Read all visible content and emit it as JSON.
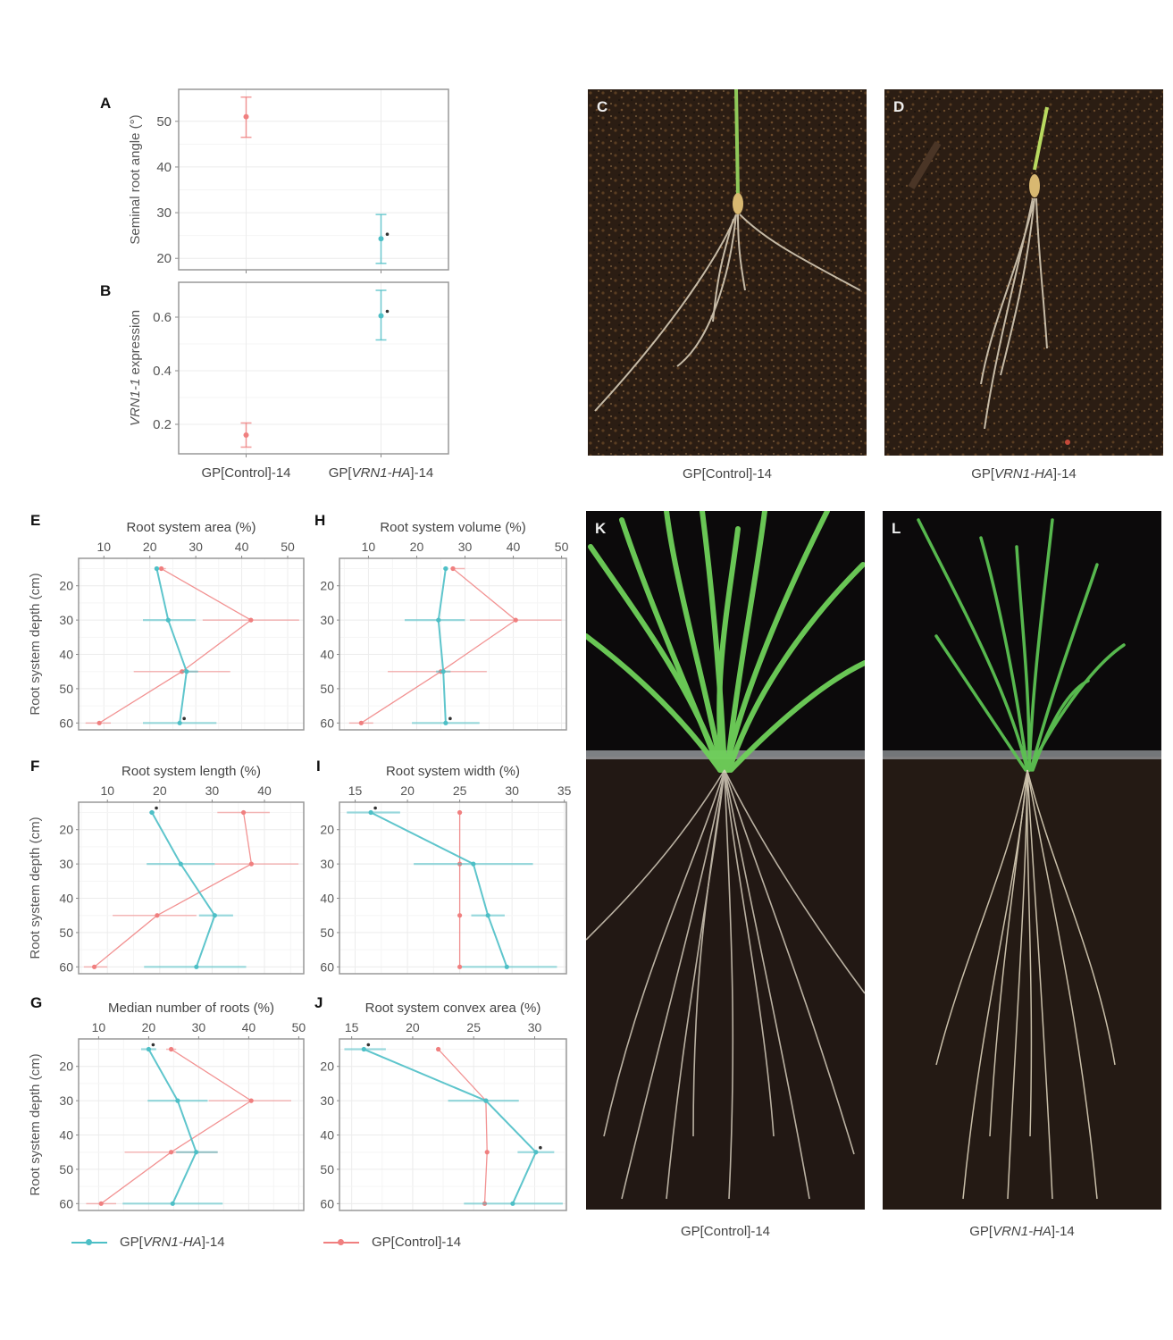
{
  "colors": {
    "vrn1": "#4dbfc6",
    "control": "#f07f7f",
    "significance": "#333333",
    "axis_frame": "#999999",
    "grid": "#ececec"
  },
  "legend": {
    "vrn1_label_prefix": "GP[",
    "vrn1_label_italic": "VRN1-HA",
    "vrn1_label_suffix": "]-14",
    "control_label": "GP[Control]-14"
  },
  "photos": {
    "C": {
      "letter": "C",
      "caption": "GP[Control]-14"
    },
    "D": {
      "letter": "D",
      "caption_prefix": "GP[",
      "caption_italic": "VRN1-HA",
      "caption_suffix": "]-14"
    },
    "K": {
      "letter": "K",
      "caption": "GP[Control]-14"
    },
    "L": {
      "letter": "L",
      "caption_prefix": "GP[",
      "caption_italic": "VRN1-HA",
      "caption_suffix": "]-14"
    }
  },
  "chart_data": [
    {
      "panel": "A",
      "type": "scatter",
      "title": "",
      "ylabel": "Seminal root angle (°)",
      "xlabel": "",
      "categories": [
        "GP[Control]-14",
        "GP[VRN1-HA]-14"
      ],
      "ylim": [
        17.5,
        57
      ],
      "yticks": [
        20,
        30,
        40,
        50
      ],
      "series": [
        {
          "name": "GP[Control]-14",
          "color": "control",
          "x": 0,
          "value": 51,
          "err_low": 46.5,
          "err_high": 55.3
        },
        {
          "name": "GP[VRN1-HA]-14",
          "color": "vrn1",
          "x": 1,
          "value": 24.3,
          "err_low": 18.9,
          "err_high": 29.6,
          "significant": true
        }
      ]
    },
    {
      "panel": "B",
      "type": "scatter",
      "title": "",
      "ylabel": "VRN1-1 expression",
      "xlabel": "",
      "categories": [
        "GP[Control]-14",
        "GP[VRN1-HA]-14"
      ],
      "ylim": [
        0.09,
        0.73
      ],
      "yticks": [
        0.2,
        0.4,
        0.6
      ],
      "series": [
        {
          "name": "GP[Control]-14",
          "color": "control",
          "x": 0,
          "value": 0.16,
          "err_low": 0.115,
          "err_high": 0.205
        },
        {
          "name": "GP[VRN1-HA]-14",
          "color": "vrn1",
          "x": 1,
          "value": 0.605,
          "err_low": 0.515,
          "err_high": 0.7,
          "significant": true
        }
      ]
    },
    {
      "panel": "E",
      "type": "line",
      "title": "Root system area (%)",
      "ylabel": "Root system depth (cm)",
      "xlim": [
        4.5,
        53.5
      ],
      "xticks": [
        10,
        20,
        30,
        40,
        50
      ],
      "ylim": [
        12,
        62
      ],
      "yticks": [
        20,
        30,
        40,
        50,
        60
      ],
      "depths": [
        15,
        30,
        45,
        60
      ],
      "series": [
        {
          "name": "GP[VRN1-HA]-14",
          "color": "vrn1",
          "values": [
            21.5,
            24,
            28,
            26.5
          ],
          "err": [
            [
              21,
              22
            ],
            [
              18.5,
              30
            ],
            [
              27,
              30.5
            ],
            [
              18.5,
              34.5
            ]
          ],
          "significant": [
            false,
            false,
            false,
            true
          ]
        },
        {
          "name": "GP[Control]-14",
          "color": "control",
          "values": [
            22.5,
            42,
            27,
            9
          ],
          "err": [
            [
              21.5,
              23.5
            ],
            [
              31.5,
              52.5
            ],
            [
              16.5,
              37.5
            ],
            [
              6,
              11.5
            ]
          ]
        }
      ]
    },
    {
      "panel": "H",
      "type": "line",
      "title": "Root system volume (%)",
      "ylabel": "",
      "xlim": [
        4,
        51
      ],
      "xticks": [
        10,
        20,
        30,
        40,
        50
      ],
      "ylim": [
        12,
        62
      ],
      "yticks": [
        20,
        30,
        40,
        50,
        60
      ],
      "depths": [
        15,
        30,
        45,
        60
      ],
      "series": [
        {
          "name": "GP[VRN1-HA]-14",
          "color": "vrn1",
          "values": [
            26,
            24.5,
            25.5,
            26
          ],
          "err": [
            [
              25.5,
              26.5
            ],
            [
              17.5,
              30
            ],
            [
              24,
              27
            ],
            [
              19,
              33
            ]
          ],
          "significant": [
            false,
            false,
            false,
            true
          ]
        },
        {
          "name": "GP[Control]-14",
          "color": "control",
          "values": [
            27.5,
            40.5,
            25,
            8.5
          ],
          "err": [
            [
              27,
              30
            ],
            [
              31,
              50
            ],
            [
              14,
              34.5
            ],
            [
              6,
              11
            ]
          ]
        }
      ]
    },
    {
      "panel": "F",
      "type": "line",
      "title": "Root system length (%)",
      "ylabel": "Root system depth (cm)",
      "xlim": [
        4.5,
        47.5
      ],
      "xticks": [
        10,
        20,
        30,
        40
      ],
      "ylim": [
        12,
        62
      ],
      "yticks": [
        20,
        30,
        40,
        50,
        60
      ],
      "depths": [
        15,
        30,
        45,
        60
      ],
      "series": [
        {
          "name": "GP[VRN1-HA]-14",
          "color": "vrn1",
          "values": [
            18.5,
            24,
            30.5,
            27
          ],
          "err": [
            [
              18,
              19
            ],
            [
              17.5,
              30.5
            ],
            [
              27.5,
              34
            ],
            [
              17,
              36.5
            ]
          ],
          "significant": [
            true,
            false,
            false,
            false
          ]
        },
        {
          "name": "GP[Control]-14",
          "color": "control",
          "values": [
            36,
            37.5,
            19.5,
            7.5
          ],
          "err": [
            [
              31,
              41
            ],
            [
              30.5,
              46.5
            ],
            [
              11,
              27
            ],
            [
              5.5,
              10
            ]
          ]
        }
      ]
    },
    {
      "panel": "I",
      "type": "line",
      "title": "Root system width (%)",
      "ylabel": "",
      "xlim": [
        13.5,
        35.2
      ],
      "xticks": [
        15,
        20,
        25,
        30,
        35
      ],
      "ylim": [
        12,
        62
      ],
      "yticks": [
        20,
        30,
        40,
        50,
        60
      ],
      "depths": [
        15,
        30,
        45,
        60
      ],
      "series": [
        {
          "name": "GP[VRN1-HA]-14",
          "color": "vrn1",
          "values": [
            16.5,
            26.3,
            27.7,
            29.5
          ],
          "err": [
            [
              14.2,
              19.3
            ],
            [
              20.6,
              32
            ],
            [
              26.1,
              29.3
            ],
            [
              25.2,
              34.3
            ]
          ],
          "significant": [
            true,
            false,
            false,
            false
          ]
        },
        {
          "name": "GP[Control]-14",
          "color": "control",
          "values": [
            25,
            25,
            25,
            25
          ],
          "err": [
            [
              25,
              25
            ],
            [
              25,
              25
            ],
            [
              25,
              25
            ],
            [
              25,
              25
            ]
          ]
        }
      ]
    },
    {
      "panel": "G",
      "type": "line",
      "title": "Median number of roots (%)",
      "ylabel": "Root system depth (cm)",
      "xlim": [
        6,
        51
      ],
      "xticks": [
        10,
        20,
        30,
        40,
        50
      ],
      "ylim": [
        12,
        62
      ],
      "yticks": [
        20,
        30,
        40,
        50,
        60
      ],
      "depths": [
        15,
        30,
        45,
        60
      ],
      "series": [
        {
          "name": "GP[VRN1-HA]-14",
          "color": "vrn1",
          "values": [
            20,
            25.8,
            29.5,
            24.8
          ],
          "err": [
            [
              18.5,
              21.5
            ],
            [
              19.8,
              31.8
            ],
            [
              25.5,
              33.8
            ],
            [
              14.8,
              34.8
            ]
          ],
          "significant": [
            true,
            false,
            false,
            false
          ]
        },
        {
          "name": "GP[Control]-14",
          "color": "control",
          "values": [
            24.5,
            40.5,
            24.5,
            10.5
          ],
          "err": [
            [
              23.5,
              25.5
            ],
            [
              32,
              48.5
            ],
            [
              15.2,
              33.8
            ],
            [
              7.5,
              13.5
            ]
          ]
        }
      ]
    },
    {
      "panel": "J",
      "type": "line",
      "title": "Root system convex area (%)",
      "ylabel": "",
      "xlim": [
        14,
        32.6
      ],
      "xticks": [
        15,
        20,
        25,
        30
      ],
      "ylim": [
        12,
        62
      ],
      "yticks": [
        20,
        30,
        40,
        50,
        60
      ],
      "depths": [
        15,
        30,
        45,
        60
      ],
      "series": [
        {
          "name": "GP[VRN1-HA]-14",
          "color": "vrn1",
          "values": [
            16,
            26,
            30.1,
            28.2
          ],
          "err": [
            [
              14.4,
              17.8
            ],
            [
              22.9,
              28.7
            ],
            [
              28.6,
              31.6
            ],
            [
              24.2,
              32.3
            ]
          ],
          "significant": [
            true,
            false,
            true,
            false
          ]
        },
        {
          "name": "GP[Control]-14",
          "color": "control",
          "values": [
            22.1,
            26,
            26.1,
            25.9
          ],
          "err": [
            [
              22.1,
              22.1
            ],
            [
              26,
              26
            ],
            [
              26.1,
              26.1
            ],
            [
              25.9,
              25.9
            ]
          ]
        }
      ]
    }
  ]
}
